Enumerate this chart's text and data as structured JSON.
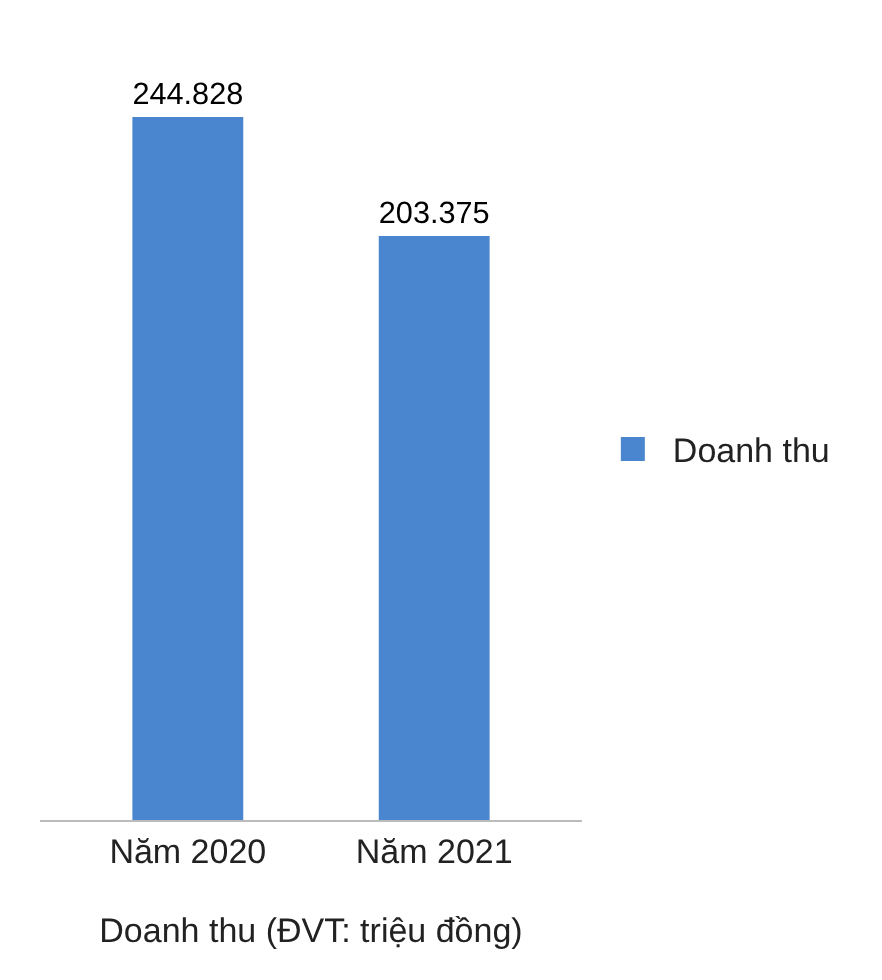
{
  "chart_data": {
    "type": "bar",
    "xlabel": "Doanh thu (ĐVT: triệu đồng)",
    "categories": [
      "Năm 2020",
      "Năm 2021"
    ],
    "series": [
      {
        "name": "Doanh thu",
        "color": "#4a86d0",
        "values": [
          244828,
          203375
        ],
        "value_labels": [
          "244.828",
          "203.375"
        ]
      }
    ],
    "legend": "right",
    "grid": false
  }
}
